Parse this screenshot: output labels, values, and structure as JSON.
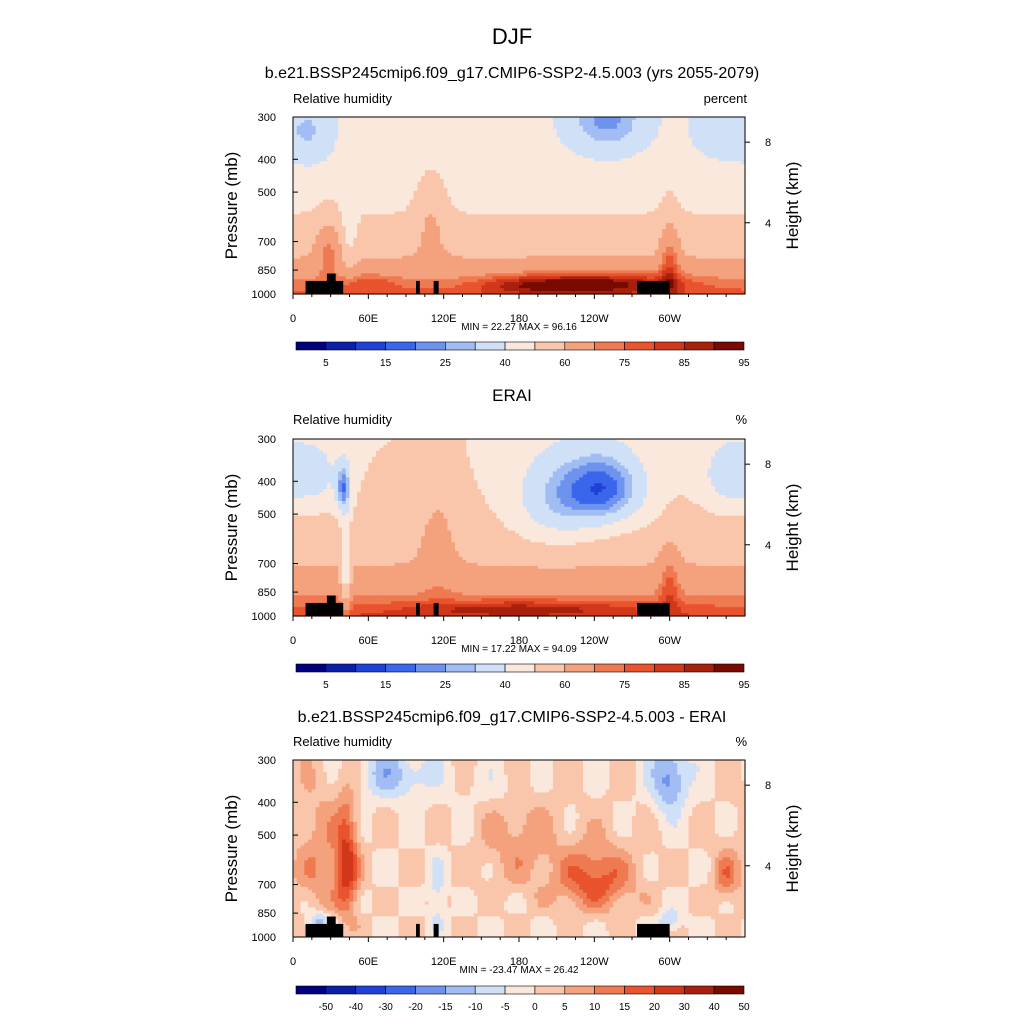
{
  "figure_title": "DJF",
  "chart_data": [
    {
      "type": "heatmap",
      "title": "b.e21.BSSP245cmip6.f09_g17.CMIP6-SSP2-4.5.003 (yrs 2055-2079)",
      "left_label": "Relative humidity",
      "right_label": "percent",
      "ylabel": "Pressure (mb)",
      "ylabel_right": "Height (km)",
      "x_ticks": [
        "0",
        "60E",
        "120E",
        "180",
        "120W",
        "60W"
      ],
      "y_ticks": [
        "300",
        "400",
        "500",
        "700",
        "850",
        "1000"
      ],
      "y_ticks_right": [
        "8",
        "4"
      ],
      "min_max_text": "MIN =  22.27  MAX =  96.16",
      "min": 22.27,
      "max": 96.16,
      "colorbar_labels": [
        "5",
        "15",
        "25",
        "40",
        "60",
        "75",
        "85",
        "95"
      ],
      "field": "model"
    },
    {
      "type": "heatmap",
      "title": "ERAI",
      "left_label": "Relative humidity",
      "right_label": "%",
      "ylabel": "Pressure (mb)",
      "ylabel_right": "Height (km)",
      "x_ticks": [
        "0",
        "60E",
        "120E",
        "180",
        "120W",
        "60W"
      ],
      "y_ticks": [
        "300",
        "400",
        "500",
        "700",
        "850",
        "1000"
      ],
      "y_ticks_right": [
        "8",
        "4"
      ],
      "min_max_text": "MIN =  17.22  MAX =  94.09",
      "min": 17.22,
      "max": 94.09,
      "colorbar_labels": [
        "5",
        "15",
        "25",
        "40",
        "60",
        "75",
        "85",
        "95"
      ],
      "field": "obs"
    },
    {
      "type": "heatmap",
      "title": "b.e21.BSSP245cmip6.f09_g17.CMIP6-SSP2-4.5.003 - ERAI",
      "left_label": "Relative humidity",
      "right_label": "%",
      "ylabel": "Pressure (mb)",
      "ylabel_right": "Height (km)",
      "x_ticks": [
        "0",
        "60E",
        "120E",
        "180",
        "120W",
        "60W"
      ],
      "y_ticks": [
        "300",
        "400",
        "500",
        "700",
        "850",
        "1000"
      ],
      "y_ticks_right": [
        "8",
        "4"
      ],
      "min_max_text": "MIN = -23.47  MAX =  26.42",
      "min": -23.47,
      "max": 26.42,
      "colorbar_labels": [
        "-50",
        "-40",
        "-30",
        "-20",
        "-15",
        "-10",
        "-5",
        "0",
        "5",
        "10",
        "15",
        "20",
        "30",
        "40",
        "50"
      ],
      "field": "diff"
    }
  ],
  "palette": [
    "#00007f",
    "#0b1fa8",
    "#1f41d6",
    "#3a66ec",
    "#6e93ef",
    "#a1bdf3",
    "#cfe0f7",
    "#fbe8dc",
    "#f9c6ab",
    "#f4a17d",
    "#ef7a52",
    "#e9532d",
    "#d1371a",
    "#a8210c",
    "#7a0a00"
  ]
}
